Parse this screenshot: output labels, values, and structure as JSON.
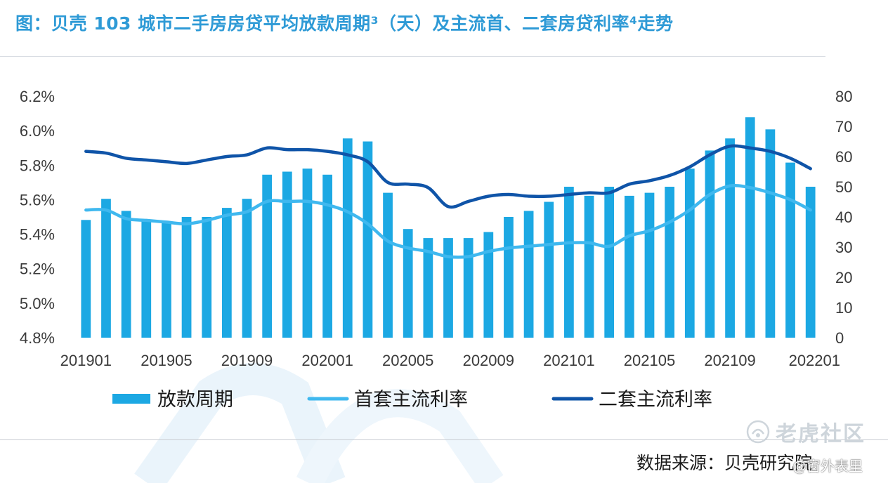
{
  "title": "图：贝壳 103 城市二手房房贷平均放款周期³（天）及主流首、二套房贷利率⁴走势",
  "source": "数据来源：贝壳研究院",
  "watermark": {
    "brand": "老虎社区",
    "author": "@窗外表里"
  },
  "chart_data": {
    "type": "bar",
    "x": [
      "201901",
      "201902",
      "201903",
      "201904",
      "201905",
      "201906",
      "201907",
      "201908",
      "201909",
      "201910",
      "201911",
      "201912",
      "202001",
      "202002",
      "202003",
      "202004",
      "202005",
      "202006",
      "202007",
      "202008",
      "202009",
      "202010",
      "202011",
      "202012",
      "202101",
      "202102",
      "202103",
      "202104",
      "202105",
      "202106",
      "202107",
      "202108",
      "202109",
      "202110",
      "202111",
      "202112",
      "202201"
    ],
    "x_tick_labels": [
      "201901",
      "201905",
      "201909",
      "202001",
      "202005",
      "202009",
      "202101",
      "202105",
      "202109",
      "202201"
    ],
    "left_axis": {
      "ylim": [
        4.8,
        6.2
      ],
      "ticks": [
        "6.2%",
        "6.0%",
        "5.8%",
        "5.6%",
        "5.4%",
        "5.2%",
        "5.0%",
        "4.8%"
      ]
    },
    "right_axis": {
      "ylim": [
        0,
        80
      ],
      "ticks": [
        "80",
        "70",
        "60",
        "50",
        "40",
        "30",
        "20",
        "10",
        "0"
      ]
    },
    "series": [
      {
        "name": "放款周期",
        "type": "bar",
        "axis": "right",
        "color": "#1ca8e3",
        "values": [
          39,
          46,
          42,
          39,
          38,
          40,
          40,
          43,
          46,
          54,
          55,
          56,
          54,
          66,
          65,
          48,
          36,
          33,
          33,
          33,
          35,
          40,
          42,
          45,
          50,
          47,
          50,
          47,
          48,
          50,
          56,
          62,
          66,
          73,
          69,
          58,
          50
        ]
      },
      {
        "name": "首套主流利率",
        "type": "line",
        "axis": "left",
        "color": "#3fb8ef",
        "values": [
          5.54,
          5.54,
          5.49,
          5.48,
          5.47,
          5.46,
          5.48,
          5.51,
          5.53,
          5.59,
          5.59,
          5.59,
          5.57,
          5.53,
          5.46,
          5.36,
          5.32,
          5.3,
          5.27,
          5.27,
          5.3,
          5.32,
          5.33,
          5.34,
          5.35,
          5.35,
          5.33,
          5.39,
          5.42,
          5.47,
          5.54,
          5.63,
          5.68,
          5.67,
          5.64,
          5.6,
          5.54
        ]
      },
      {
        "name": "二套主流利率",
        "type": "line",
        "axis": "left",
        "color": "#0f54a8",
        "values": [
          5.88,
          5.87,
          5.84,
          5.83,
          5.82,
          5.81,
          5.83,
          5.85,
          5.86,
          5.9,
          5.89,
          5.89,
          5.88,
          5.86,
          5.82,
          5.7,
          5.69,
          5.67,
          5.56,
          5.59,
          5.62,
          5.63,
          5.62,
          5.62,
          5.63,
          5.64,
          5.64,
          5.69,
          5.71,
          5.74,
          5.79,
          5.86,
          5.91,
          5.9,
          5.88,
          5.84,
          5.78
        ]
      }
    ],
    "legend": {
      "position": "bottom"
    },
    "grid": false
  }
}
